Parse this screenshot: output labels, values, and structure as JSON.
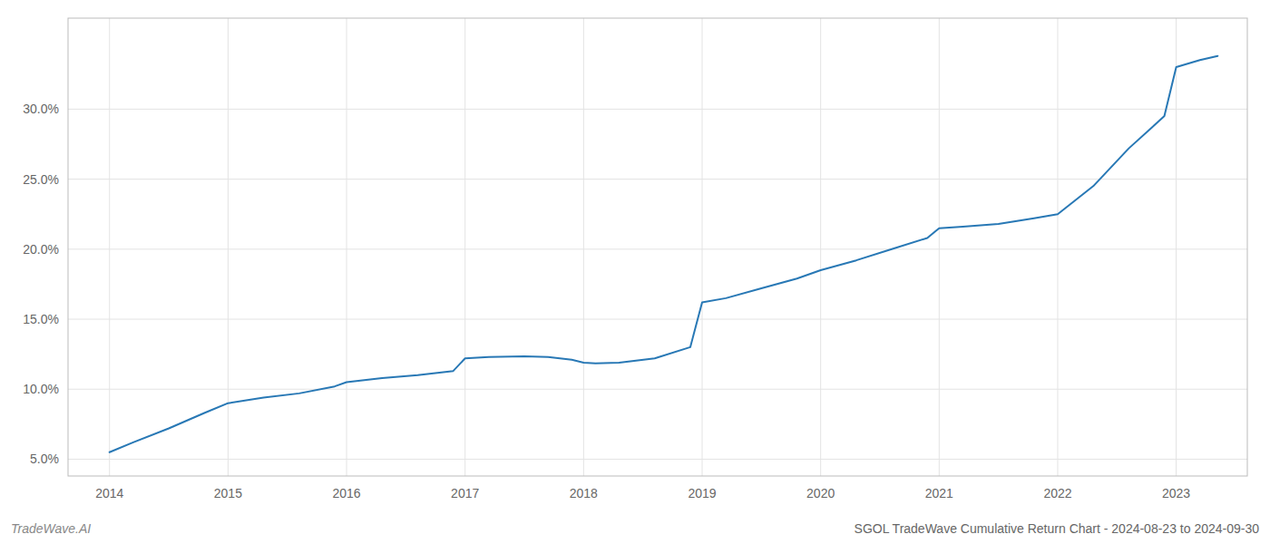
{
  "chart_data": {
    "type": "line",
    "title": "SGOL TradeWave Cumulative Return Chart - 2024-08-23 to 2024-09-30",
    "annotations": [
      "TradeWave.AI"
    ],
    "color": "#2878b5",
    "grid": true,
    "x": [
      2014.0,
      2014.2,
      2014.5,
      2014.8,
      2015.0,
      2015.3,
      2015.6,
      2015.9,
      2016.0,
      2016.3,
      2016.6,
      2016.9,
      2017.0,
      2017.2,
      2017.5,
      2017.7,
      2017.9,
      2018.0,
      2018.1,
      2018.3,
      2018.6,
      2018.9,
      2019.0,
      2019.2,
      2019.5,
      2019.8,
      2020.0,
      2020.3,
      2020.6,
      2020.9,
      2021.0,
      2021.2,
      2021.5,
      2021.8,
      2022.0,
      2022.3,
      2022.6,
      2022.9,
      2023.0,
      2023.2,
      2023.35
    ],
    "values": [
      5.5,
      6.2,
      7.2,
      8.3,
      9.0,
      9.4,
      9.7,
      10.2,
      10.5,
      10.8,
      11.0,
      11.3,
      12.2,
      12.3,
      12.35,
      12.3,
      12.1,
      11.9,
      11.85,
      11.9,
      12.2,
      13.0,
      16.2,
      16.5,
      17.2,
      17.9,
      18.5,
      19.2,
      20.0,
      20.8,
      21.5,
      21.6,
      21.8,
      22.2,
      22.5,
      24.5,
      27.2,
      29.5,
      33.0,
      33.5,
      33.8
    ],
    "xlim": [
      2013.65,
      2023.6
    ],
    "ylim": [
      3.8,
      36.5
    ],
    "xticks": [
      2014,
      2015,
      2016,
      2017,
      2018,
      2019,
      2020,
      2021,
      2022,
      2023
    ],
    "yticks": [
      {
        "value": 5.0,
        "label": "5.0%"
      },
      {
        "value": 10.0,
        "label": "10.0%"
      },
      {
        "value": 15.0,
        "label": "15.0%"
      },
      {
        "value": 20.0,
        "label": "20.0%"
      },
      {
        "value": 25.0,
        "label": "25.0%"
      },
      {
        "value": 30.0,
        "label": "30.0%"
      }
    ]
  }
}
